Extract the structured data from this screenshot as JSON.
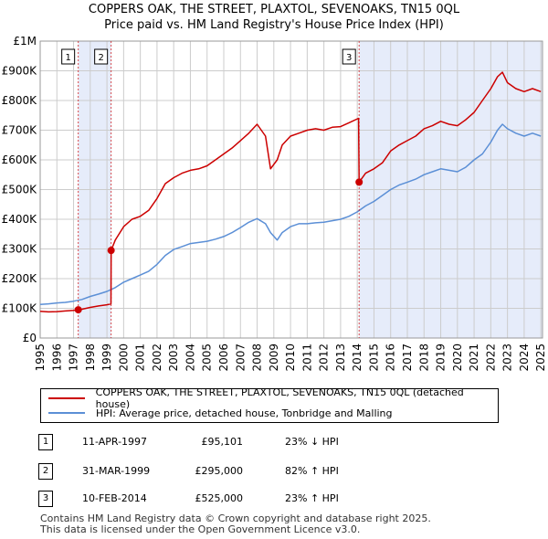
{
  "title_line1": "COPPERS OAK, THE STREET, PLAXTOL, SEVENOAKS, TN15 0QL",
  "title_line2": "Price paid vs. HM Land Registry's House Price Index (HPI)",
  "colors": {
    "red": "#cc0000",
    "blue": "#5b8fd6",
    "band": "#e6ecfa",
    "grid": "#cccccc"
  },
  "chart_data": {
    "type": "line",
    "x_range": [
      1995.0,
      2025.1
    ],
    "ylim": [
      0,
      1000000
    ],
    "y_ticks": [
      {
        "value": 0,
        "label": "£0"
      },
      {
        "value": 100000,
        "label": "£100K"
      },
      {
        "value": 200000,
        "label": "£200K"
      },
      {
        "value": 300000,
        "label": "£300K"
      },
      {
        "value": 400000,
        "label": "£400K"
      },
      {
        "value": 500000,
        "label": "£500K"
      },
      {
        "value": 600000,
        "label": "£600K"
      },
      {
        "value": 700000,
        "label": "£700K"
      },
      {
        "value": 800000,
        "label": "£800K"
      },
      {
        "value": 900000,
        "label": "£900K"
      },
      {
        "value": 1000000,
        "label": "£1M"
      }
    ],
    "x_ticks": [
      "1995",
      "1996",
      "1997",
      "1998",
      "1999",
      "2000",
      "2001",
      "2002",
      "2003",
      "2004",
      "2005",
      "2006",
      "2007",
      "2008",
      "2009",
      "2010",
      "2011",
      "2012",
      "2013",
      "2014",
      "2015",
      "2016",
      "2017",
      "2018",
      "2019",
      "2020",
      "2021",
      "2022",
      "2023",
      "2024",
      "2025"
    ],
    "grid": true,
    "shaded_periods": [
      [
        1997.28,
        1999.25
      ],
      [
        2014.11,
        2025.1
      ]
    ],
    "series": [
      {
        "name": "COPPERS OAK, THE STREET, PLAXTOL, SEVENOAKS, TN15 0QL (detached house)",
        "color": "#cc0000",
        "x": [
          1995.0,
          1995.5,
          1996.0,
          1996.5,
          1997.0,
          1997.28,
          1997.5,
          1998.0,
          1998.5,
          1999.0,
          1999.24,
          1999.25,
          1999.5,
          2000.0,
          2000.5,
          2001.0,
          2001.5,
          2002.0,
          2002.5,
          2003.0,
          2003.5,
          2004.0,
          2004.5,
          2005.0,
          2005.5,
          2006.0,
          2006.5,
          2007.0,
          2007.5,
          2008.0,
          2008.5,
          2008.8,
          2009.2,
          2009.5,
          2010.0,
          2010.5,
          2011.0,
          2011.5,
          2012.0,
          2012.5,
          2013.0,
          2013.5,
          2014.08,
          2014.11,
          2014.5,
          2015.0,
          2015.5,
          2016.0,
          2016.5,
          2017.0,
          2017.5,
          2018.0,
          2018.5,
          2019.0,
          2019.5,
          2020.0,
          2020.5,
          2021.0,
          2021.5,
          2022.0,
          2022.4,
          2022.7,
          2023.0,
          2023.5,
          2024.0,
          2024.5,
          2025.0
        ],
        "values": [
          90000,
          88000,
          89000,
          91000,
          93000,
          95101,
          97000,
          103000,
          108000,
          112000,
          115000,
          295000,
          330000,
          375000,
          400000,
          410000,
          430000,
          470000,
          520000,
          540000,
          555000,
          565000,
          570000,
          580000,
          600000,
          620000,
          640000,
          665000,
          690000,
          720000,
          680000,
          570000,
          600000,
          650000,
          680000,
          690000,
          700000,
          705000,
          700000,
          710000,
          712000,
          725000,
          740000,
          525000,
          555000,
          570000,
          590000,
          630000,
          650000,
          665000,
          680000,
          705000,
          715000,
          730000,
          720000,
          715000,
          735000,
          760000,
          800000,
          840000,
          880000,
          895000,
          860000,
          840000,
          830000,
          840000,
          830000
        ]
      },
      {
        "name": "HPI: Average price, detached house, Tonbridge and Malling",
        "color": "#5b8fd6",
        "x": [
          1995.0,
          1995.5,
          1996.0,
          1996.5,
          1997.0,
          1997.5,
          1998.0,
          1998.5,
          1999.0,
          1999.5,
          2000.0,
          2000.5,
          2001.0,
          2001.5,
          2002.0,
          2002.5,
          2003.0,
          2003.5,
          2004.0,
          2004.5,
          2005.0,
          2005.5,
          2006.0,
          2006.5,
          2007.0,
          2007.5,
          2008.0,
          2008.5,
          2008.8,
          2009.2,
          2009.5,
          2010.0,
          2010.5,
          2011.0,
          2011.5,
          2012.0,
          2012.5,
          2013.0,
          2013.5,
          2014.0,
          2014.5,
          2015.0,
          2015.5,
          2016.0,
          2016.5,
          2017.0,
          2017.5,
          2018.0,
          2018.5,
          2019.0,
          2019.5,
          2020.0,
          2020.5,
          2021.0,
          2021.5,
          2022.0,
          2022.4,
          2022.7,
          2023.0,
          2023.5,
          2024.0,
          2024.5,
          2025.0
        ],
        "values": [
          113000,
          115000,
          118000,
          120000,
          124000,
          130000,
          140000,
          148000,
          157000,
          170000,
          188000,
          200000,
          212000,
          225000,
          248000,
          278000,
          298000,
          308000,
          318000,
          322000,
          326000,
          333000,
          342000,
          355000,
          372000,
          390000,
          402000,
          385000,
          355000,
          330000,
          355000,
          375000,
          385000,
          385000,
          388000,
          390000,
          395000,
          400000,
          410000,
          425000,
          445000,
          460000,
          480000,
          500000,
          515000,
          525000,
          535000,
          550000,
          560000,
          570000,
          565000,
          560000,
          575000,
          600000,
          620000,
          660000,
          700000,
          720000,
          705000,
          690000,
          680000,
          690000,
          680000
        ]
      }
    ],
    "sale_markers": [
      {
        "label": "1",
        "x": 1997.28,
        "value": 95101
      },
      {
        "label": "2",
        "x": 1999.25,
        "value": 295000
      },
      {
        "label": "3",
        "x": 2014.11,
        "value": 525000
      }
    ]
  },
  "legend": {
    "property_label": "COPPERS OAK, THE STREET, PLAXTOL, SEVENOAKS, TN15 0QL (detached house)",
    "hpi_label": "HPI: Average price, detached house, Tonbridge and Malling"
  },
  "transactions": [
    {
      "num": "1",
      "date": "11-APR-1997",
      "price": "£95,101",
      "hpi": "23% ↓ HPI"
    },
    {
      "num": "2",
      "date": "31-MAR-1999",
      "price": "£295,000",
      "hpi": "82% ↑ HPI"
    },
    {
      "num": "3",
      "date": "10-FEB-2014",
      "price": "£525,000",
      "hpi": "23% ↑ HPI"
    }
  ],
  "footer": {
    "line1": "Contains HM Land Registry data © Crown copyright and database right 2025.",
    "line2": "This data is licensed under the Open Government Licence v3.0."
  }
}
